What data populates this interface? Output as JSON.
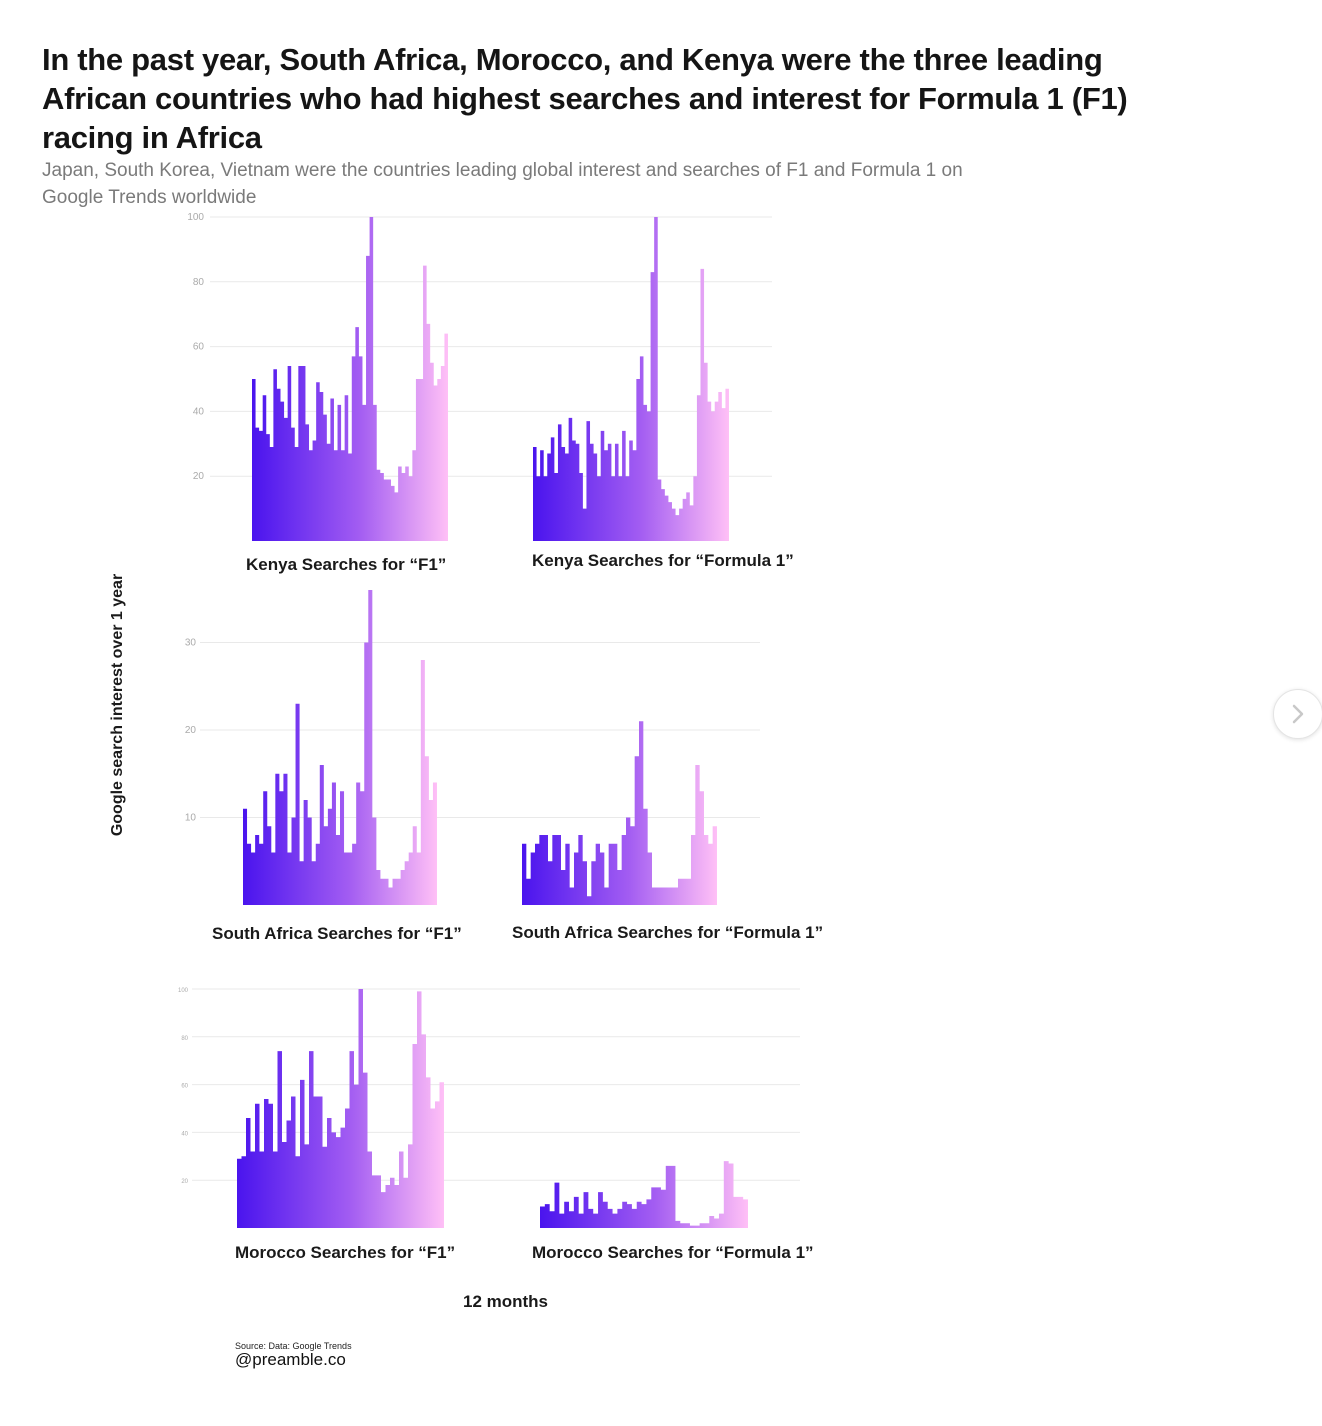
{
  "title": "In the past year, South Africa, Morocco, and Kenya were the three leading African countries who had highest searches and interest for Formula 1 (F1) racing  in Africa",
  "subtitle": "Japan, South Korea, Vietnam were the countries leading global interest and searches of F1 and Formula 1 on Google Trends worldwide",
  "y_axis_label": "Google search interest over 1 year",
  "x_axis_label": "12 months",
  "source": "Source: Data: Google Trends",
  "handle": "@preamble.co",
  "colors": {
    "bar_start": "#4a14ee",
    "bar_mid": "#a35df2",
    "bar_end": "#ffc0f6",
    "grid": "#e9e9e9",
    "tick": "#aaaaaa"
  },
  "next_button_icon": "chevron-right-icon",
  "chart_data": [
    {
      "type": "bar",
      "title": "Kenya Searches for “F1”",
      "x": "12 months",
      "ylim": [
        0,
        100
      ],
      "yticks": [
        20,
        40,
        60,
        80,
        100
      ],
      "ytick_labels": [
        "20",
        "40",
        "60",
        "80",
        "100"
      ],
      "values": [
        50,
        35,
        34,
        45,
        33,
        29,
        53,
        47,
        43,
        38,
        54,
        35,
        29,
        54,
        54,
        36,
        28,
        31,
        49,
        46,
        39,
        30,
        44,
        28,
        42,
        28,
        45,
        27,
        57,
        66,
        57,
        42,
        88,
        100,
        42,
        22,
        21,
        19,
        19,
        17,
        15,
        23,
        21,
        23,
        20,
        28,
        50,
        50,
        85,
        67,
        55,
        48,
        50,
        54,
        64
      ]
    },
    {
      "type": "bar",
      "title": "Kenya Searches for “Formula 1”",
      "x": "12 months",
      "ylim": [
        0,
        100
      ],
      "yticks": [
        20,
        40,
        60,
        80,
        100
      ],
      "ytick_labels": [],
      "values": [
        29,
        20,
        28,
        20,
        27,
        32,
        21,
        36,
        29,
        27,
        38,
        31,
        30,
        21,
        10,
        37,
        30,
        27,
        20,
        34,
        28,
        30,
        20,
        30,
        20,
        34,
        20,
        31,
        28,
        50,
        57,
        42,
        40,
        83,
        100,
        19,
        16,
        14,
        12,
        10,
        8,
        10,
        13,
        15,
        11,
        20,
        45,
        84,
        55,
        43,
        40,
        43,
        46,
        41,
        47
      ]
    },
    {
      "type": "bar",
      "title": "South Africa Searches for “F1”",
      "x": "12 months",
      "ylim": [
        0,
        36
      ],
      "yticks": [
        10,
        20,
        30
      ],
      "ytick_labels": [
        "10",
        "20",
        "30"
      ],
      "values": [
        11,
        7,
        6,
        8,
        7,
        13,
        9,
        6,
        15,
        13,
        15,
        6,
        10,
        23,
        5,
        12,
        10,
        5,
        7,
        16,
        9,
        11,
        14,
        8,
        13,
        6,
        6,
        7,
        14,
        13,
        30,
        36,
        10,
        4,
        3,
        3,
        2,
        3,
        3,
        4,
        5,
        6,
        9,
        6,
        28,
        17,
        12,
        14
      ]
    },
    {
      "type": "bar",
      "title": "South Africa Searches for “Formula 1”",
      "x": "12 months",
      "ylim": [
        0,
        36
      ],
      "yticks": [
        10,
        20,
        30
      ],
      "ytick_labels": [],
      "values": [
        7,
        3,
        6,
        7,
        8,
        8,
        5,
        8,
        8,
        4,
        7,
        2,
        6,
        8,
        5,
        1,
        5,
        7,
        6,
        2,
        7,
        7,
        4,
        8,
        10,
        9,
        17,
        21,
        11,
        6,
        2,
        2,
        2,
        2,
        2,
        2,
        3,
        3,
        3,
        8,
        16,
        13,
        8,
        7,
        9
      ]
    },
    {
      "type": "bar",
      "title": "Morocco Searches for “F1”",
      "x": "12 months",
      "ylim": [
        0,
        100
      ],
      "yticks": [
        20,
        40,
        60,
        80,
        100
      ],
      "ytick_labels": [
        "20",
        "40",
        "60",
        "80",
        "100"
      ],
      "values": [
        29,
        30,
        46,
        32,
        52,
        32,
        54,
        52,
        32,
        74,
        36,
        45,
        55,
        30,
        62,
        35,
        74,
        55,
        55,
        34,
        46,
        40,
        38,
        42,
        50,
        74,
        60,
        100,
        65,
        32,
        22,
        22,
        15,
        18,
        21,
        18,
        32,
        21,
        35,
        77,
        99,
        81,
        63,
        50,
        53,
        61
      ]
    },
    {
      "type": "bar",
      "title": "Morocco Searches for “Formula 1”",
      "x": "12 months",
      "ylim": [
        0,
        100
      ],
      "yticks": [
        20,
        40,
        60,
        80,
        100
      ],
      "ytick_labels": [],
      "values": [
        9,
        10,
        7,
        19,
        6,
        11,
        7,
        13,
        6,
        15,
        8,
        6,
        15,
        11,
        8,
        6,
        8,
        11,
        10,
        8,
        11,
        10,
        12,
        17,
        17,
        16,
        26,
        26,
        3,
        2,
        2,
        1,
        1,
        2,
        2,
        5,
        4,
        6,
        28,
        27,
        13,
        13,
        12
      ]
    }
  ]
}
